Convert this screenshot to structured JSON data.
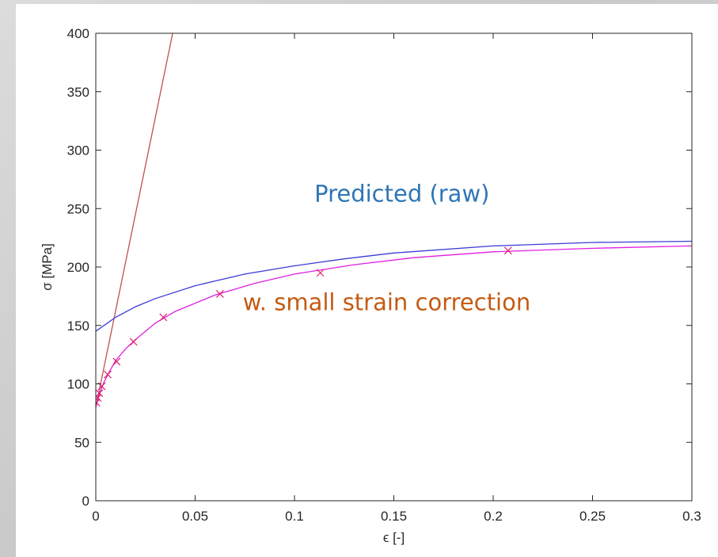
{
  "chart_data": {
    "type": "line",
    "xlabel": "ϵ [-]",
    "ylabel": "σ [MPa]",
    "xlim": [
      0,
      0.3
    ],
    "ylim": [
      0,
      400
    ],
    "xticks": [
      "0",
      "0.05",
      "0.1",
      "0.15",
      "0.2",
      "0.25",
      "0.3"
    ],
    "yticks": [
      "0",
      "50",
      "100",
      "150",
      "200",
      "250",
      "300",
      "350",
      "400"
    ],
    "grid": false,
    "annotations": [
      {
        "text": "Predicted (raw)",
        "color": "#2e75b6",
        "x": 0.11,
        "y": 256
      },
      {
        "text": "w. small strain correction",
        "color": "#c55a11",
        "x": 0.074,
        "y": 163
      }
    ],
    "series": [
      {
        "kind": "line",
        "color": "#c0504d",
        "x": [
          0,
          0.0387
        ],
        "y": [
          80,
          400
        ]
      },
      {
        "kind": "line",
        "color": "#3b3bd6",
        "x": [
          0,
          0.005,
          0.01,
          0.02,
          0.03,
          0.05,
          0.075,
          0.1,
          0.125,
          0.15,
          0.2,
          0.25,
          0.3
        ],
        "y": [
          145,
          151,
          157,
          166,
          173,
          184,
          194,
          201,
          207,
          212,
          218,
          221,
          222
        ]
      },
      {
        "kind": "line",
        "color": "#e01ee0",
        "x": [
          0,
          0.001,
          0.002,
          0.004,
          0.007,
          0.01,
          0.015,
          0.02,
          0.03,
          0.04,
          0.06,
          0.08,
          0.1,
          0.13,
          0.16,
          0.2,
          0.25,
          0.3
        ],
        "y": [
          80,
          86,
          92,
          101,
          111,
          120,
          130,
          138,
          152,
          162,
          176,
          186,
          194,
          202,
          208,
          213,
          216,
          218
        ]
      },
      {
        "kind": "scatter",
        "marker": "x",
        "color": "#e0206a",
        "x": [
          0.0003,
          0.001,
          0.0018,
          0.003,
          0.006,
          0.0105,
          0.019,
          0.034,
          0.0625,
          0.113,
          0.2075
        ],
        "y": [
          84,
          88,
          92,
          98,
          108,
          119,
          136,
          157,
          177,
          195,
          214
        ]
      }
    ]
  }
}
